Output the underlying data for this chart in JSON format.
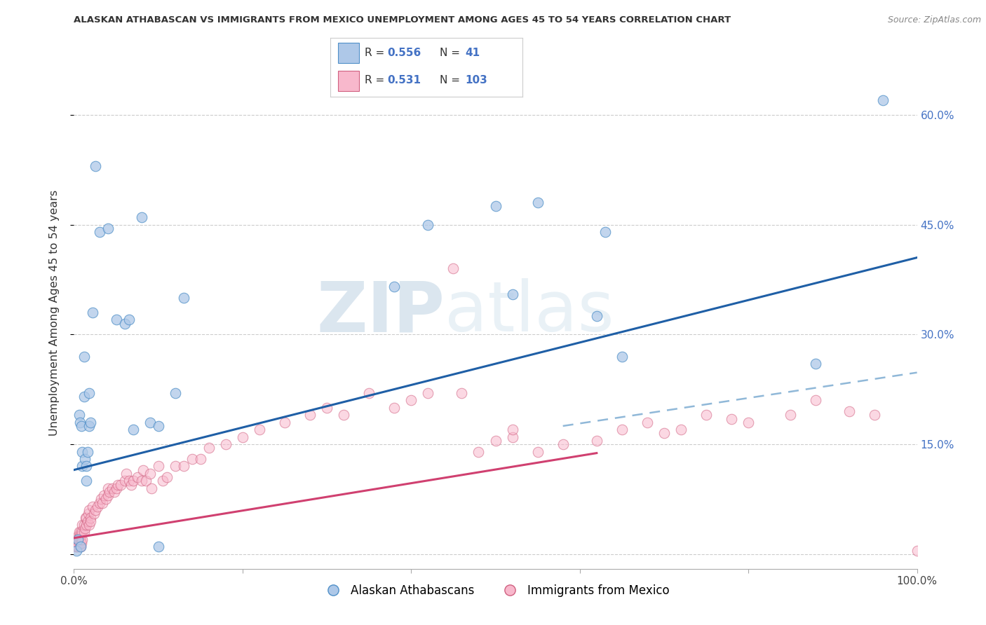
{
  "title": "ALASKAN ATHABASCAN VS IMMIGRANTS FROM MEXICO UNEMPLOYMENT AMONG AGES 45 TO 54 YEARS CORRELATION CHART",
  "source": "Source: ZipAtlas.com",
  "ylabel": "Unemployment Among Ages 45 to 54 years",
  "xlim": [
    0,
    1.0
  ],
  "ylim": [
    -0.02,
    0.68
  ],
  "blue_color": "#aec8e8",
  "blue_edge_color": "#5090c8",
  "pink_color": "#f8b8cc",
  "pink_edge_color": "#d06080",
  "blue_line_color": "#1f5fa6",
  "pink_line_color": "#d04070",
  "dashed_line_color": "#90b8d8",
  "watermark_zip": "ZIP",
  "watermark_atlas": "atlas",
  "legend_R_blue": "0.556",
  "legend_N_blue": "41",
  "legend_R_pink": "0.531",
  "legend_N_pink": "103",
  "legend_label_blue": "Alaskan Athabascans",
  "legend_label_pink": "Immigrants from Mexico",
  "blue_scatter_x": [
    0.003,
    0.005,
    0.006,
    0.007,
    0.008,
    0.009,
    0.01,
    0.01,
    0.012,
    0.012,
    0.013,
    0.015,
    0.015,
    0.016,
    0.018,
    0.018,
    0.02,
    0.022,
    0.025,
    0.03,
    0.04,
    0.05,
    0.06,
    0.065,
    0.07,
    0.08,
    0.09,
    0.1,
    0.1,
    0.12,
    0.13,
    0.38,
    0.42,
    0.5,
    0.52,
    0.55,
    0.62,
    0.63,
    0.65,
    0.88,
    0.96
  ],
  "blue_scatter_y": [
    0.005,
    0.02,
    0.19,
    0.18,
    0.01,
    0.175,
    0.14,
    0.12,
    0.27,
    0.215,
    0.13,
    0.12,
    0.1,
    0.14,
    0.175,
    0.22,
    0.18,
    0.33,
    0.53,
    0.44,
    0.445,
    0.32,
    0.315,
    0.32,
    0.17,
    0.46,
    0.18,
    0.01,
    0.175,
    0.22,
    0.35,
    0.365,
    0.45,
    0.475,
    0.355,
    0.48,
    0.325,
    0.44,
    0.27,
    0.26,
    0.62
  ],
  "pink_scatter_x": [
    0.0,
    0.001,
    0.001,
    0.002,
    0.002,
    0.003,
    0.003,
    0.004,
    0.004,
    0.005,
    0.005,
    0.005,
    0.006,
    0.006,
    0.007,
    0.007,
    0.008,
    0.008,
    0.008,
    0.009,
    0.01,
    0.01,
    0.01,
    0.012,
    0.012,
    0.013,
    0.014,
    0.015,
    0.015,
    0.016,
    0.017,
    0.018,
    0.018,
    0.02,
    0.02,
    0.022,
    0.024,
    0.025,
    0.028,
    0.03,
    0.032,
    0.034,
    0.035,
    0.038,
    0.04,
    0.04,
    0.042,
    0.045,
    0.048,
    0.05,
    0.052,
    0.055,
    0.06,
    0.062,
    0.065,
    0.068,
    0.07,
    0.075,
    0.08,
    0.082,
    0.085,
    0.09,
    0.092,
    0.1,
    0.105,
    0.11,
    0.12,
    0.13,
    0.14,
    0.15,
    0.16,
    0.18,
    0.2,
    0.22,
    0.25,
    0.28,
    0.3,
    0.32,
    0.35,
    0.38,
    0.4,
    0.42,
    0.45,
    0.46,
    0.48,
    0.5,
    0.52,
    0.52,
    0.55,
    0.58,
    0.62,
    0.65,
    0.68,
    0.7,
    0.72,
    0.75,
    0.78,
    0.8,
    0.85,
    0.88,
    0.92,
    0.95,
    1.0
  ],
  "pink_scatter_y": [
    0.012,
    0.02,
    0.01,
    0.01,
    0.02,
    0.01,
    0.015,
    0.01,
    0.02,
    0.015,
    0.025,
    0.01,
    0.02,
    0.03,
    0.01,
    0.025,
    0.01,
    0.02,
    0.03,
    0.015,
    0.02,
    0.03,
    0.04,
    0.03,
    0.04,
    0.035,
    0.05,
    0.05,
    0.04,
    0.045,
    0.055,
    0.06,
    0.04,
    0.05,
    0.045,
    0.065,
    0.055,
    0.06,
    0.065,
    0.07,
    0.075,
    0.07,
    0.08,
    0.075,
    0.08,
    0.09,
    0.085,
    0.09,
    0.085,
    0.09,
    0.095,
    0.095,
    0.1,
    0.11,
    0.1,
    0.095,
    0.1,
    0.105,
    0.1,
    0.115,
    0.1,
    0.11,
    0.09,
    0.12,
    0.1,
    0.105,
    0.12,
    0.12,
    0.13,
    0.13,
    0.145,
    0.15,
    0.16,
    0.17,
    0.18,
    0.19,
    0.2,
    0.19,
    0.22,
    0.2,
    0.21,
    0.22,
    0.39,
    0.22,
    0.14,
    0.155,
    0.16,
    0.17,
    0.14,
    0.15,
    0.155,
    0.17,
    0.18,
    0.165,
    0.17,
    0.19,
    0.185,
    0.18,
    0.19,
    0.21,
    0.195,
    0.19,
    0.005
  ],
  "blue_trend": [
    0.0,
    1.0,
    0.115,
    0.405
  ],
  "pink_trend": [
    0.0,
    0.62,
    0.022,
    0.138
  ],
  "dashed_trend": [
    0.58,
    1.0,
    0.175,
    0.248
  ],
  "background_color": "#ffffff",
  "grid_color": "#cccccc",
  "ytick_values": [
    0.0,
    0.15,
    0.3,
    0.45,
    0.6
  ],
  "ytick_labels": [
    "",
    "15.0%",
    "30.0%",
    "45.0%",
    "60.0%"
  ],
  "xtick_values": [
    0.0,
    0.2,
    0.4,
    0.6,
    0.8,
    1.0
  ],
  "xtick_labels": [
    "0.0%",
    "",
    "",
    "",
    "",
    "100.0%"
  ]
}
